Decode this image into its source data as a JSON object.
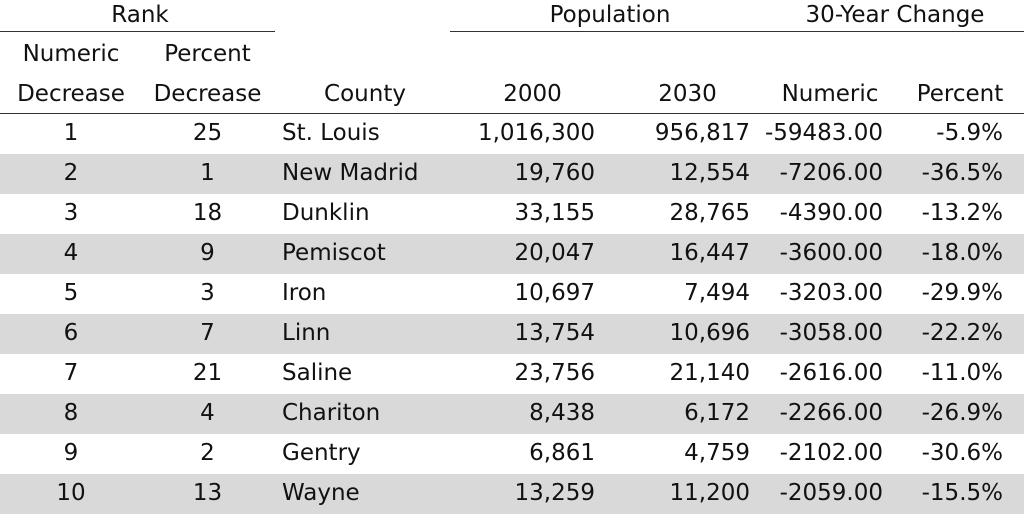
{
  "group_headers": {
    "rank": "Rank",
    "population": "Population",
    "change": "30-Year Change"
  },
  "column_headers": {
    "numeric_decrease_line1": "Numeric",
    "numeric_decrease_line2": "Decrease",
    "percent_decrease_line1": "Percent",
    "percent_decrease_line2": "Decrease",
    "county": "County",
    "pop_2000": "2000",
    "pop_2030": "2030",
    "change_numeric": "Numeric",
    "change_percent": "Percent"
  },
  "rows": [
    {
      "num_rank": "1",
      "pct_rank": "25",
      "county": "St. Louis",
      "pop2000": "1,016,300",
      "pop2030": "956,817",
      "change": "-59483.00",
      "pct": "-5.9%"
    },
    {
      "num_rank": "2",
      "pct_rank": "1",
      "county": "New Madrid",
      "pop2000": "19,760",
      "pop2030": "12,554",
      "change": "-7206.00",
      "pct": "-36.5%"
    },
    {
      "num_rank": "3",
      "pct_rank": "18",
      "county": "Dunklin",
      "pop2000": "33,155",
      "pop2030": "28,765",
      "change": "-4390.00",
      "pct": "-13.2%"
    },
    {
      "num_rank": "4",
      "pct_rank": "9",
      "county": "Pemiscot",
      "pop2000": "20,047",
      "pop2030": "16,447",
      "change": "-3600.00",
      "pct": "-18.0%"
    },
    {
      "num_rank": "5",
      "pct_rank": "3",
      "county": "Iron",
      "pop2000": "10,697",
      "pop2030": "7,494",
      "change": "-3203.00",
      "pct": "-29.9%"
    },
    {
      "num_rank": "6",
      "pct_rank": "7",
      "county": "Linn",
      "pop2000": "13,754",
      "pop2030": "10,696",
      "change": "-3058.00",
      "pct": "-22.2%"
    },
    {
      "num_rank": "7",
      "pct_rank": "21",
      "county": "Saline",
      "pop2000": "23,756",
      "pop2030": "21,140",
      "change": "-2616.00",
      "pct": "-11.0%"
    },
    {
      "num_rank": "8",
      "pct_rank": "4",
      "county": "Chariton",
      "pop2000": "8,438",
      "pop2030": "6,172",
      "change": "-2266.00",
      "pct": "-26.9%"
    },
    {
      "num_rank": "9",
      "pct_rank": "2",
      "county": "Gentry",
      "pop2000": "6,861",
      "pop2030": "4,759",
      "change": "-2102.00",
      "pct": "-30.6%"
    },
    {
      "num_rank": "10",
      "pct_rank": "13",
      "county": "Wayne",
      "pop2000": "13,259",
      "pop2030": "11,200",
      "change": "-2059.00",
      "pct": "-15.5%"
    }
  ]
}
